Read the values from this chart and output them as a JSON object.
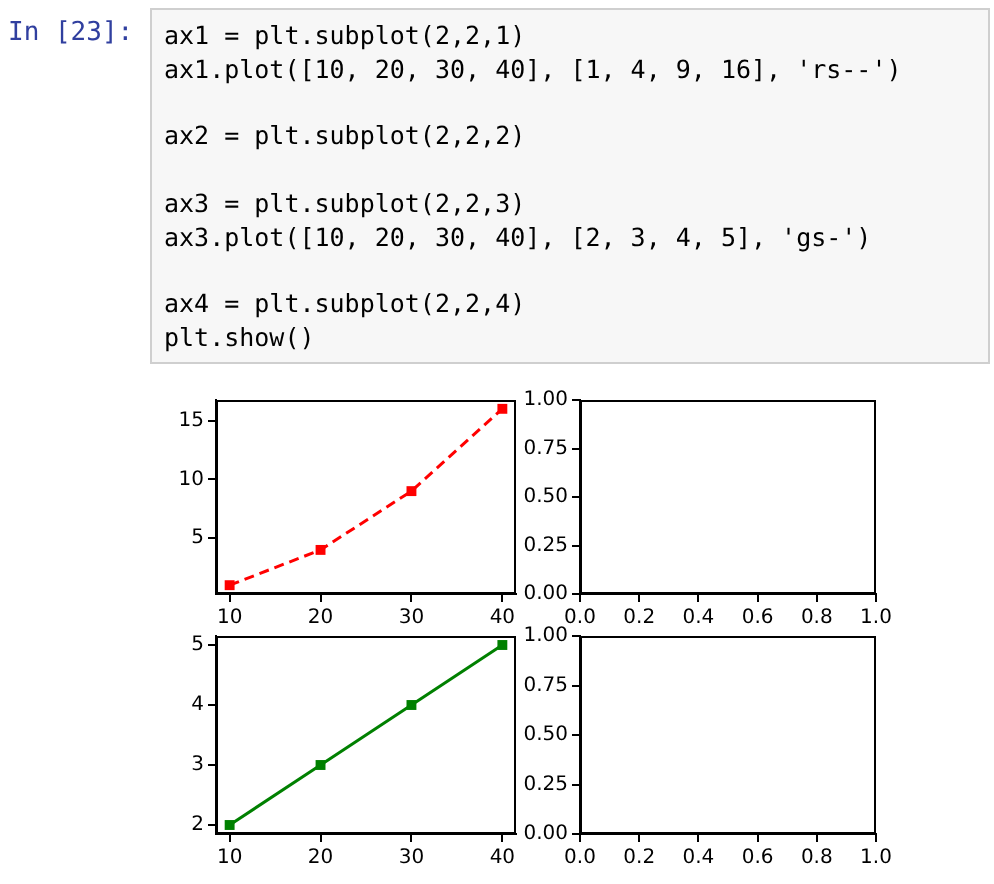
{
  "chart_data": [
    {
      "type": "line",
      "x": [
        10,
        20,
        30,
        40
      ],
      "marker": "square",
      "line_style": "dashed",
      "grid": false,
      "legend": false,
      "series": [
        {
          "color": "#ff0000",
          "values": [
            1,
            4,
            9,
            16
          ]
        }
      ],
      "xlim": [
        8.5,
        41.5
      ],
      "xticks": [
        10,
        20,
        30,
        40
      ],
      "ylim": [
        0.25,
        16.75
      ],
      "yticks": [
        5,
        10,
        15
      ],
      "annotations": [
        "In [23]:",
        "ax1 = plt.subplot(2,2,1)",
        "ax1.plot([10, 20, 30, 40], [1, 4, 9, 16], 'rs--')",
        "ax2 = plt.subplot(2,2,2)",
        "ax3 = plt.subplot(2,2,3)",
        "ax3.plot([10, 20, 30, 40], [2, 3, 4, 5], 'gs-')",
        "ax4 = plt.subplot(2,2,4)",
        "plt.show()"
      ]
    },
    {
      "type": "line",
      "grid": false,
      "legend": false,
      "xlim": [
        0,
        1
      ],
      "xticks": [
        {
          "value": 0,
          "label": "0.0"
        },
        {
          "value": 0.2,
          "label": "0.2"
        },
        {
          "value": 0.4,
          "label": "0.4"
        },
        {
          "value": 0.6,
          "label": "0.6"
        },
        {
          "value": 0.8,
          "label": "0.8"
        },
        {
          "value": 1,
          "label": "1.0"
        }
      ],
      "ylim": [
        0,
        1
      ],
      "yticks": [
        {
          "value": 0,
          "label": "0.00"
        },
        {
          "value": 0.25,
          "label": "0.25"
        },
        {
          "value": 0.5,
          "label": "0.50"
        },
        {
          "value": 0.75,
          "label": "0.75"
        },
        {
          "value": 1,
          "label": "1.00"
        }
      ]
    },
    {
      "type": "line",
      "x": [
        10,
        20,
        30,
        40
      ],
      "marker": "square",
      "line_style": "solid",
      "grid": false,
      "legend": false,
      "series": [
        {
          "color": "#008000",
          "values": [
            2,
            3,
            4,
            5
          ]
        }
      ],
      "xlim": [
        8.5,
        41.5
      ],
      "xticks": [
        10,
        20,
        30,
        40
      ],
      "ylim": [
        1.85,
        5.15
      ],
      "yticks": [
        2,
        3,
        4,
        5
      ]
    },
    {
      "type": "line",
      "grid": false,
      "legend": false,
      "xlim": [
        0,
        1
      ],
      "xticks": [
        {
          "value": 0,
          "label": "0.0"
        },
        {
          "value": 0.2,
          "label": "0.2"
        },
        {
          "value": 0.4,
          "label": "0.4"
        },
        {
          "value": 0.6,
          "label": "0.6"
        },
        {
          "value": 0.8,
          "label": "0.8"
        },
        {
          "value": 1,
          "label": "1.0"
        }
      ],
      "ylim": [
        0,
        1
      ],
      "yticks": [
        {
          "value": 0,
          "label": "0.00"
        },
        {
          "value": 0.25,
          "label": "0.25"
        },
        {
          "value": 0.5,
          "label": "0.50"
        },
        {
          "value": 0.75,
          "label": "0.75"
        },
        {
          "value": 1,
          "label": "1.00"
        }
      ]
    }
  ]
}
